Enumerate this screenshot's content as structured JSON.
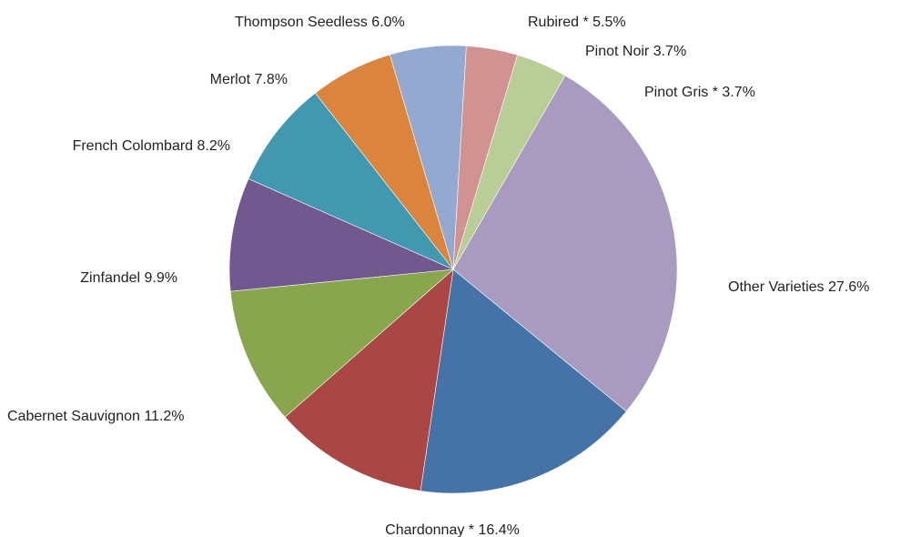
{
  "chart_data": {
    "type": "pie",
    "title": "",
    "slices": [
      {
        "name": "Other Varieties",
        "value": 27.6,
        "value_label": "27.6%",
        "color": "#a99bc0"
      },
      {
        "name": "Chardonnay *",
        "value": 16.4,
        "value_label": "16.4%",
        "color": "#4572a7"
      },
      {
        "name": "Cabernet Sauvignon",
        "value": 11.2,
        "value_label": "11.2%",
        "color": "#aa4643"
      },
      {
        "name": "Zinfandel",
        "value": 9.9,
        "value_label": "9.9%",
        "color": "#89a54e"
      },
      {
        "name": "French Colombard",
        "value": 8.2,
        "value_label": "8.2%",
        "color": "#71588f"
      },
      {
        "name": "Merlot",
        "value": 7.8,
        "value_label": "7.8%",
        "color": "#4198af"
      },
      {
        "name": "Thompson Seedless",
        "value": 6.0,
        "value_label": "6.0%",
        "color": "#db843d"
      },
      {
        "name": "Rubired *",
        "value": 5.5,
        "value_label": "5.5%",
        "color": "#93a9cf"
      },
      {
        "name": "Pinot Noir",
        "value": 3.7,
        "value_label": "3.7%",
        "color": "#d19392"
      },
      {
        "name": "Pinot Gris *",
        "value": 3.7,
        "value_label": "3.7%",
        "color": "#b9cd96"
      }
    ],
    "start_angle_deg": 150,
    "direction": "clockwise-from-upper-right",
    "legend": "none",
    "data_labels": "outside"
  }
}
